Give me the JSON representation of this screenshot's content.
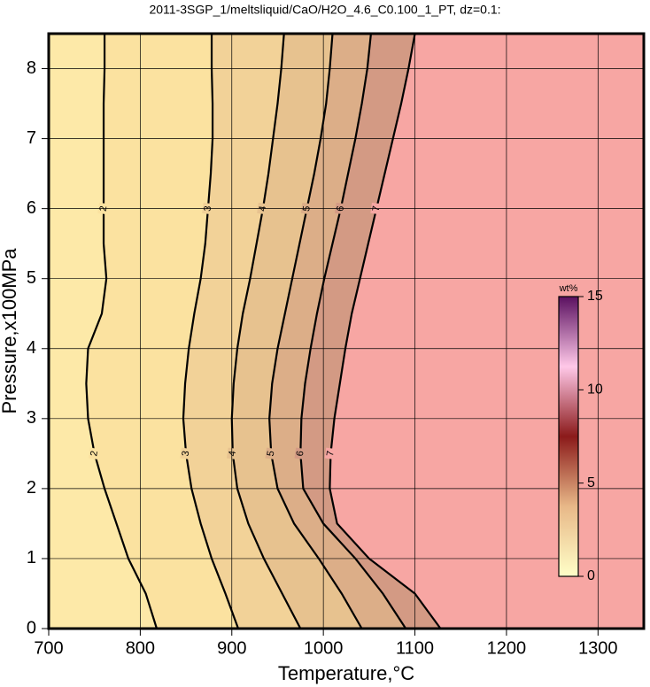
{
  "chart_data": {
    "type": "contour",
    "title": "2011-3SGP_1/meltsliquid/CaO/H2O_4.6_C0.100_1_PT, dz=0.1:",
    "x_label": "Temperature,°C",
    "y_label": "Pressure,x100MPa",
    "xlim": [
      700,
      1350
    ],
    "ylim": [
      0,
      8.5
    ],
    "xticks": [
      700,
      800,
      900,
      1000,
      1100,
      1200,
      1300
    ],
    "yticks": [
      0,
      1,
      2,
      3,
      4,
      5,
      6,
      7,
      8
    ],
    "grid": true,
    "background": "#fde9a8",
    "line_color": "#000000",
    "pressure": [
      0,
      0.5,
      1,
      1.5,
      2,
      2.5,
      3,
      3.5,
      4,
      4.5,
      5,
      5.5,
      6,
      6.5,
      7,
      7.5,
      8,
      8.5
    ],
    "levels": [
      {
        "level": 2,
        "fill": "#fbe2a0",
        "temperature": [
          818,
          806,
          787,
          774,
          761,
          750,
          743,
          741,
          743,
          758,
          763,
          760,
          760,
          760,
          760,
          760,
          761,
          761
        ]
      },
      {
        "level": 3,
        "fill": "#f2d298",
        "temperature": [
          907,
          893,
          878,
          866,
          856,
          850,
          847,
          849,
          853,
          859,
          866,
          871,
          874,
          877,
          879,
          879,
          878,
          878
        ]
      },
      {
        "level": 4,
        "fill": "#e7c28f",
        "temperature": [
          975,
          955,
          935,
          918,
          906,
          901,
          900,
          902,
          906,
          912,
          920,
          927,
          934,
          940,
          945,
          950,
          954,
          957
        ]
      },
      {
        "level": 5,
        "fill": "#dcae88",
        "temperature": [
          1042,
          1020,
          995,
          968,
          950,
          943,
          941,
          944,
          950,
          958,
          966,
          974,
          982,
          990,
          997,
          1003,
          1007,
          1010
        ]
      },
      {
        "level": 6,
        "fill": "#d39a84",
        "temperature": [
          1090,
          1065,
          1035,
          1000,
          978,
          975,
          976,
          980,
          986,
          993,
          1001,
          1010,
          1019,
          1027,
          1035,
          1042,
          1048,
          1052
        ]
      },
      {
        "level": 7,
        "fill": "#f7a6a3",
        "temperature": [
          1128,
          1100,
          1050,
          1015,
          1007,
          1008,
          1012,
          1018,
          1024,
          1031,
          1040,
          1049,
          1058,
          1067,
          1076,
          1085,
          1093,
          1100
        ]
      }
    ],
    "colorbar": {
      "label": "wt%",
      "lim": [
        0,
        15
      ],
      "ticks": [
        0,
        5,
        10,
        15
      ],
      "colors": [
        "#ffffc8",
        "#e8b888",
        "#8b1a1a",
        "#ffc8e8",
        "#5a1060"
      ]
    }
  }
}
